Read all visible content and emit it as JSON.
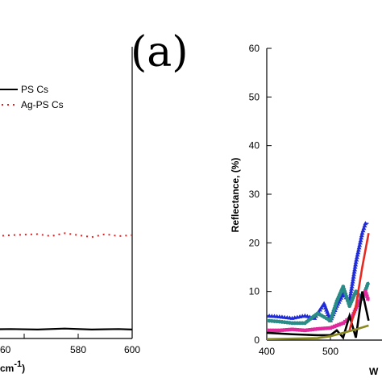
{
  "panel_label": "(a)",
  "chart_data": [
    {
      "type": "line",
      "x_ticks": [
        "60",
        "580",
        "600"
      ],
      "xlabel_fragment": "cm",
      "xlabel_sup": "-1",
      "xlabel_tail": ")",
      "legend": [
        {
          "label": "PS Cs",
          "style": "solid",
          "color": "#000000"
        },
        {
          "label": "Ag-PS Cs",
          "style": "dotted",
          "color": "#e02020"
        }
      ],
      "series": [
        {
          "name": "PS Cs",
          "color": "#000000",
          "x": [
            529,
            535,
            545,
            555,
            565,
            575,
            585,
            595,
            600
          ],
          "y": [
            0.5,
            0.6,
            0.5,
            0.55,
            0.5,
            0.6,
            0.5,
            0.55,
            0.5
          ]
        },
        {
          "name": "Ag-PS Cs",
          "color": "#e02020",
          "x": [
            529,
            535,
            545,
            555,
            565,
            570,
            575,
            585,
            590,
            595,
            600
          ],
          "y": [
            10.0,
            10.1,
            9.9,
            10.1,
            10.2,
            10.0,
            10.3,
            9.9,
            10.2,
            10.0,
            10.1
          ]
        }
      ]
    },
    {
      "type": "line",
      "ylabel": "Reflectance, (%)",
      "xlabel_fragment": "W",
      "y_ticks": [
        "0",
        "10",
        "20",
        "30",
        "40",
        "50",
        "60"
      ],
      "x_ticks": [
        "400",
        "500"
      ],
      "ylim": [
        0,
        60
      ],
      "xlim": [
        400,
        560
      ],
      "series": [
        {
          "color": "#1f2bd6",
          "marker": "triangle",
          "x": [
            400,
            420,
            440,
            460,
            475,
            490,
            500,
            510,
            520,
            530,
            540,
            550,
            555,
            560
          ],
          "y": [
            5,
            4.8,
            4.5,
            5,
            4.5,
            7.5,
            4,
            7,
            9.5,
            8,
            16,
            22,
            24,
            24
          ]
        },
        {
          "color": "#2a8c86",
          "marker": "circle",
          "x": [
            400,
            420,
            440,
            460,
            480,
            500,
            510,
            520,
            530,
            540,
            550,
            560
          ],
          "y": [
            4,
            3.8,
            3.5,
            3.5,
            5.5,
            4,
            8,
            11,
            7,
            10,
            8.5,
            12
          ]
        },
        {
          "color": "#e02a9c",
          "marker": "square",
          "x": [
            400,
            420,
            440,
            460,
            480,
            500,
            520,
            535,
            545,
            555,
            560
          ],
          "y": [
            2,
            2,
            2.2,
            2,
            2.3,
            2.5,
            3.5,
            5,
            8,
            10,
            8
          ]
        },
        {
          "color": "#000000",
          "marker": "none",
          "x": [
            400,
            440,
            480,
            500,
            510,
            520,
            530,
            540,
            550,
            560
          ],
          "y": [
            1.5,
            1.2,
            1,
            1,
            2,
            0.5,
            5,
            0.5,
            10,
            4
          ]
        },
        {
          "color": "#e52a22",
          "marker": "none",
          "x": [
            530,
            540,
            550,
            560
          ],
          "y": [
            2,
            7,
            15,
            22
          ]
        },
        {
          "color": "#8a8a20",
          "marker": "none",
          "x": [
            400,
            440,
            480,
            500,
            520,
            540,
            560
          ],
          "y": [
            0.2,
            0.3,
            0.4,
            0.8,
            1.5,
            2.2,
            3
          ]
        }
      ]
    }
  ]
}
